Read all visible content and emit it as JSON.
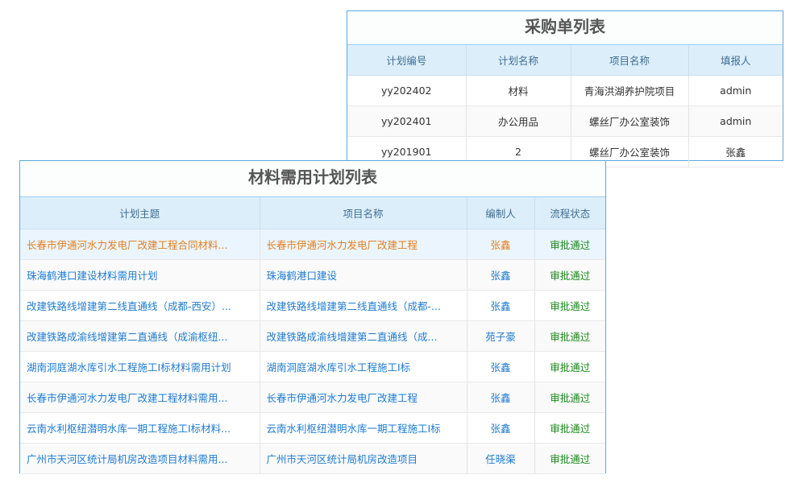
{
  "purchase": {
    "title": "采购单列表",
    "headers": [
      "计划编号",
      "计划名称",
      "项目名称",
      "填报人"
    ],
    "rows": [
      [
        "yy202402",
        "材料",
        "青海洪湖养护院项目",
        "admin"
      ],
      [
        "yy202401",
        "办公用品",
        "螺丝厂办公室装饰",
        "admin"
      ],
      [
        "yy201901",
        "2",
        "螺丝厂办公室装饰",
        "张鑫"
      ]
    ]
  },
  "material": {
    "title": "材料需用计划列表",
    "headers": [
      "计划主题",
      "项目名称",
      "编制人",
      "流程状态"
    ],
    "rows": [
      [
        "长春市伊通河水力发电厂改建工程合同材料...",
        "长春市伊通河水力发电厂改建工程",
        "张鑫",
        "审批通过"
      ],
      [
        "珠海鹤港口建设材料需用计划",
        "珠海鹤港口建设",
        "张鑫",
        "审批通过"
      ],
      [
        "改建铁路线增建第二线直通线（成都-西安）...",
        "改建铁路线增建第二线直通线（成都-...",
        "张鑫",
        "审批通过"
      ],
      [
        "改建铁路成渝线增建第二直通线（成渝枢纽...",
        "改建铁路成渝线增建第二直通线（成...",
        "苑子豪",
        "审批通过"
      ],
      [
        "湖南洞庭湖水库引水工程施工I标材料需用计划",
        "湖南洞庭湖水库引水工程施工I标",
        "张鑫",
        "审批通过"
      ],
      [
        "长春市伊通河水力发电厂改建工程材料需用...",
        "长春市伊通河水力发电厂改建工程",
        "张鑫",
        "审批通过"
      ],
      [
        "云南水利枢纽潜明水库一期工程施工I标材料...",
        "云南水利枢纽潜明水库一期工程施工I标",
        "张鑫",
        "审批通过"
      ],
      [
        "广州市天河区统计局机房改造项目材料需用...",
        "广州市天河区统计局机房改造项目",
        "任晓渠",
        "审批通过"
      ]
    ]
  },
  "colors": {
    "link": "#1e7bd0",
    "highlight": "#e2801f",
    "approved": "#1b8a1b",
    "header_bg": "#ddeefb"
  }
}
